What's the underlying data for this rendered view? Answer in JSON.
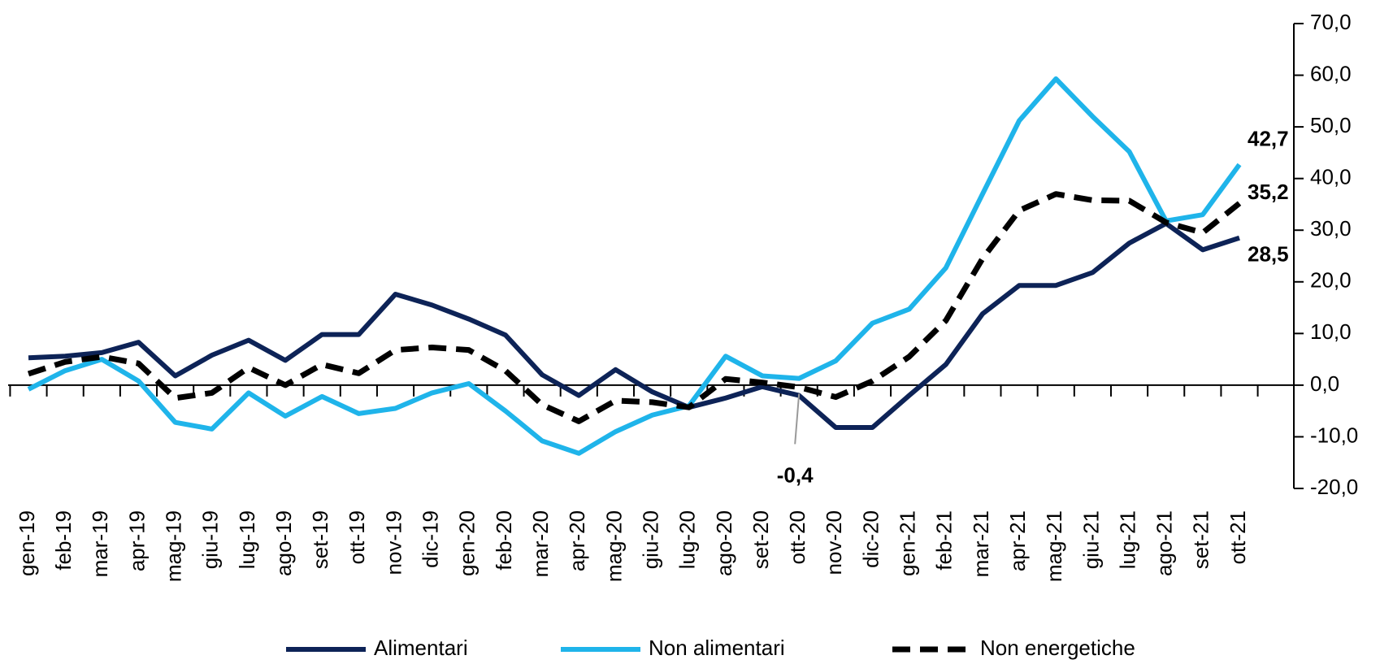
{
  "chart_data": {
    "type": "line",
    "categories": [
      "gen-19",
      "feb-19",
      "mar-19",
      "apr-19",
      "mag-19",
      "giu-19",
      "lug-19",
      "ago-19",
      "set-19",
      "ott-19",
      "nov-19",
      "dic-19",
      "gen-20",
      "feb-20",
      "mar-20",
      "apr-20",
      "mag-20",
      "giu-20",
      "lug-20",
      "ago-20",
      "set-20",
      "ott-20",
      "nov-20",
      "dic-20",
      "gen-21",
      "feb-21",
      "mar-21",
      "apr-21",
      "mag-21",
      "giu-21",
      "lug-21",
      "ago-21",
      "set-21",
      "ott-21"
    ],
    "series": [
      {
        "name": "Alimentari",
        "color": "#0d2357",
        "dash": false,
        "values": [
          5.3,
          5.6,
          6.3,
          8.3,
          1.8,
          5.8,
          8.7,
          4.8,
          9.8,
          9.8,
          17.6,
          15.5,
          12.8,
          9.7,
          2.0,
          -2.0,
          3.0,
          -1.3,
          -4.3,
          -2.5,
          -0.3,
          -2.0,
          -8.2,
          -8.2,
          -2.0,
          4.0,
          13.8,
          19.3,
          19.3,
          21.8,
          27.5,
          31.3,
          26.2,
          28.5
        ],
        "value_labels": [
          null,
          null,
          null,
          null,
          null,
          null,
          null,
          null,
          null,
          null,
          null,
          null,
          null,
          null,
          null,
          null,
          null,
          null,
          null,
          null,
          null,
          null,
          null,
          null,
          null,
          null,
          null,
          null,
          null,
          null,
          null,
          null,
          null,
          "28,5"
        ]
      },
      {
        "name": "Non alimentari",
        "color": "#1fb4ea",
        "dash": false,
        "values": [
          -0.8,
          2.8,
          5.0,
          0.8,
          -7.2,
          -8.5,
          -1.5,
          -6.0,
          -2.2,
          -5.5,
          -4.5,
          -1.5,
          0.3,
          -5.0,
          -10.8,
          -13.2,
          -9.0,
          -5.8,
          -4.0,
          5.6,
          1.8,
          1.3,
          4.7,
          12.0,
          14.7,
          22.7,
          37.0,
          51.2,
          59.3,
          52.0,
          45.2,
          31.8,
          33.0,
          42.7
        ],
        "value_labels": [
          null,
          null,
          null,
          null,
          null,
          null,
          null,
          null,
          null,
          null,
          null,
          null,
          null,
          null,
          null,
          null,
          null,
          null,
          null,
          null,
          null,
          null,
          null,
          null,
          null,
          null,
          null,
          null,
          null,
          null,
          null,
          null,
          null,
          "42,7"
        ]
      },
      {
        "name": "Non energetiche",
        "color": "#000000",
        "dash": true,
        "values": [
          2.2,
          4.5,
          5.5,
          4.2,
          -2.5,
          -1.5,
          3.4,
          0,
          4.0,
          2.3,
          6.8,
          7.3,
          6.8,
          2.8,
          -3.8,
          -7.0,
          -3.0,
          -3.3,
          -4.3,
          1.2,
          0.5,
          -0.4,
          -2.3,
          0.8,
          5.5,
          12.5,
          24.5,
          33.8,
          37.0,
          35.8,
          35.7,
          31.5,
          29.5,
          35.2
        ],
        "value_labels": [
          null,
          null,
          null,
          null,
          null,
          null,
          null,
          null,
          null,
          null,
          null,
          null,
          null,
          null,
          null,
          null,
          null,
          null,
          null,
          null,
          null,
          "-0,4",
          null,
          null,
          null,
          null,
          null,
          null,
          null,
          null,
          null,
          null,
          null,
          "35,2"
        ]
      }
    ],
    "ylim": [
      -20,
      70
    ],
    "yticks": [
      {
        "value": -20,
        "label": "-20,0"
      },
      {
        "value": -10,
        "label": "-10,0"
      },
      {
        "value": 0,
        "label": "0,0"
      },
      {
        "value": 10,
        "label": "10,0"
      },
      {
        "value": 20,
        "label": "20,0"
      },
      {
        "value": 30,
        "label": "30,0"
      },
      {
        "value": 40,
        "label": "40,0"
      },
      {
        "value": 50,
        "label": "50,0"
      },
      {
        "value": 60,
        "label": "60,0"
      },
      {
        "value": 70,
        "label": "70,0"
      }
    ],
    "yaxis_side": "right",
    "legend": "bottom",
    "grid": false
  }
}
